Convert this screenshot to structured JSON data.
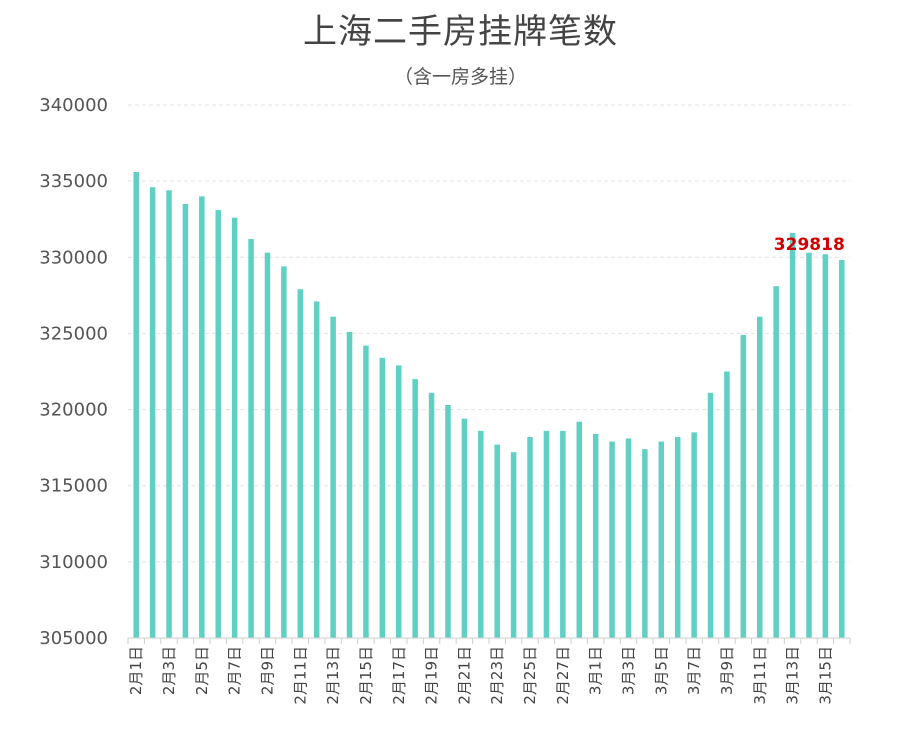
{
  "chart_data": {
    "type": "bar",
    "title": "上海二手房挂牌笔数",
    "subtitle": "（含一房多挂）",
    "xlabel": "",
    "ylabel": "",
    "ylim": [
      305000,
      340000
    ],
    "yticks": [
      340000,
      335000,
      330000,
      325000,
      320000,
      315000,
      310000,
      305000
    ],
    "grid": true,
    "categories": [
      "2月1日",
      "2月2日",
      "2月3日",
      "2月4日",
      "2月5日",
      "2月6日",
      "2月7日",
      "2月8日",
      "2月9日",
      "2月10日",
      "2月11日",
      "2月12日",
      "2月13日",
      "2月14日",
      "2月15日",
      "2月16日",
      "2月17日",
      "2月18日",
      "2月19日",
      "2月20日",
      "2月21日",
      "2月22日",
      "2月23日",
      "2月24日",
      "2月25日",
      "2月26日",
      "2月27日",
      "2月28日",
      "3月1日",
      "3月2日",
      "3月3日",
      "3月4日",
      "3月5日",
      "3月6日",
      "3月7日",
      "3月8日",
      "3月9日",
      "3月10日",
      "3月11日",
      "3月12日",
      "3月13日",
      "3月14日",
      "3月15日",
      "3月16日"
    ],
    "visible_tick_labels": [
      "2月1日",
      "2月3日",
      "2月5日",
      "2月7日",
      "2月9日",
      "2月11日",
      "2月13日",
      "2月15日",
      "2月17日",
      "2月19日",
      "2月21日",
      "2月23日",
      "2月25日",
      "2月27日",
      "3月1日",
      "3月3日",
      "3月5日",
      "3月7日",
      "3月9日",
      "3月11日",
      "3月13日",
      "3月15日"
    ],
    "values": [
      335600,
      334600,
      334400,
      333500,
      334000,
      333100,
      332600,
      331200,
      330300,
      329400,
      327900,
      327100,
      326100,
      325100,
      324200,
      323400,
      322900,
      322000,
      321100,
      320300,
      319400,
      318600,
      317700,
      317200,
      318200,
      318600,
      318600,
      319200,
      318400,
      317900,
      318100,
      317400,
      317900,
      318200,
      318500,
      321100,
      322500,
      324900,
      326100,
      328100,
      331600,
      330300,
      330200,
      329818
    ],
    "bar_color": "#5fd0c3",
    "annotation": {
      "text": "329818",
      "color": "#d00000"
    }
  }
}
